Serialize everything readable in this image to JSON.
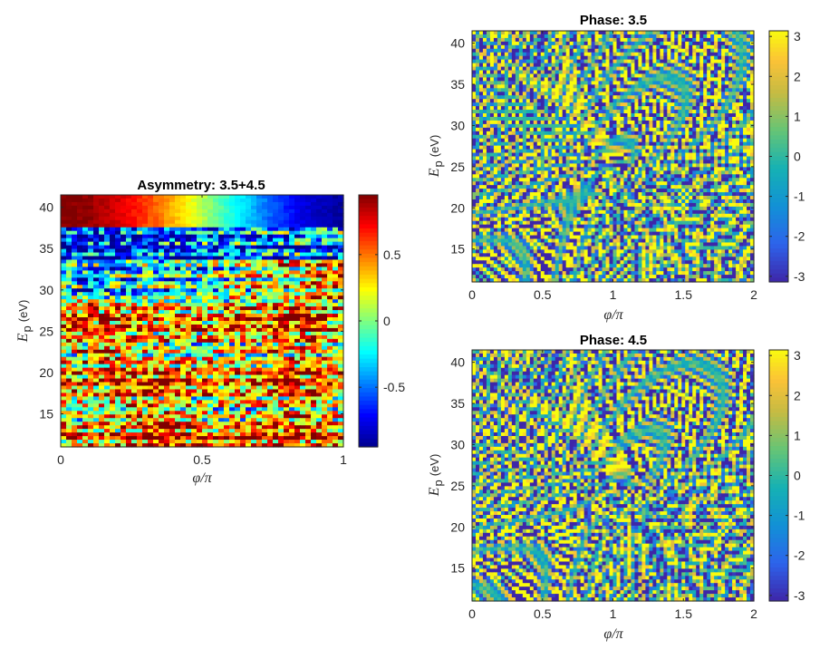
{
  "chart_data": [
    {
      "id": "asym",
      "type": "heatmap",
      "title": "Asymmetry: 3.5+4.5",
      "xlabel": "φ/π",
      "ylabel_main": "E",
      "ylabel_sub": "p",
      "ylabel_unit": "(eV)",
      "xlim": [
        0,
        1
      ],
      "ylim": [
        11,
        41.5
      ],
      "xticks": [
        0,
        0.5,
        1
      ],
      "xtick_labels": [
        "0",
        "0.5",
        "1"
      ],
      "yticks": [
        15,
        20,
        25,
        30,
        35,
        40
      ],
      "ytick_labels": [
        "15",
        "20",
        "25",
        "30",
        "35",
        "40"
      ],
      "colormap": "jet",
      "clim": [
        -0.95,
        0.95
      ],
      "cbar_ticks": [
        -0.5,
        0,
        0.5
      ],
      "cbar_tick_labels": [
        "-0.5",
        "0",
        "0.5"
      ]
    },
    {
      "id": "phase35",
      "type": "heatmap",
      "title": "Phase: 3.5",
      "xlabel": "φ/π",
      "ylabel_main": "E",
      "ylabel_sub": "p",
      "ylabel_unit": "(eV)",
      "xlim": [
        0,
        2
      ],
      "ylim": [
        11,
        41.5
      ],
      "xticks": [
        0,
        0.5,
        1,
        1.5,
        2
      ],
      "xtick_labels": [
        "0",
        "0.5",
        "1",
        "1.5",
        "2"
      ],
      "yticks": [
        15,
        20,
        25,
        30,
        35,
        40
      ],
      "ytick_labels": [
        "15",
        "20",
        "25",
        "30",
        "35",
        "40"
      ],
      "colormap": "parula",
      "clim": [
        -3.14,
        3.14
      ],
      "cbar_ticks": [
        -3,
        -2,
        -1,
        0,
        1,
        2,
        3
      ],
      "cbar_tick_labels": [
        "-3",
        "-2",
        "-1",
        "0",
        "1",
        "2",
        "3"
      ]
    },
    {
      "id": "phase45",
      "type": "heatmap",
      "title": "Phase: 4.5",
      "xlabel": "φ/π",
      "ylabel_main": "E",
      "ylabel_sub": "p",
      "ylabel_unit": "(eV)",
      "xlim": [
        0,
        2
      ],
      "ylim": [
        11,
        41.5
      ],
      "xticks": [
        0,
        0.5,
        1,
        1.5,
        2
      ],
      "xtick_labels": [
        "0",
        "0.5",
        "1",
        "1.5",
        "2"
      ],
      "yticks": [
        15,
        20,
        25,
        30,
        35,
        40
      ],
      "ytick_labels": [
        "15",
        "20",
        "25",
        "30",
        "35",
        "40"
      ],
      "colormap": "parula",
      "clim": [
        -3.14,
        3.14
      ],
      "cbar_ticks": [
        -3,
        -2,
        -1,
        0,
        1,
        2,
        3
      ],
      "cbar_tick_labels": [
        "-3",
        "-2",
        "-1",
        "0",
        "1",
        "2",
        "3"
      ]
    }
  ]
}
